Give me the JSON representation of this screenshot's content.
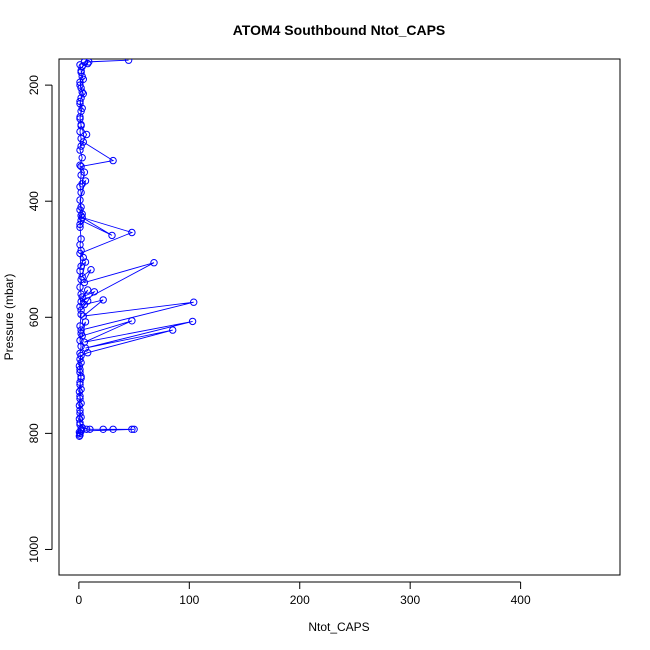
{
  "chart_data": {
    "type": "line",
    "title": "ATOM4 Southbound Ntot_CAPS",
    "xlabel": "Ntot_CAPS",
    "ylabel": "Pressure (mbar)",
    "xlim": [
      -18,
      490
    ],
    "ylim": [
      1044,
      155
    ],
    "y_inverted": true,
    "x_ticks": [
      0,
      100,
      200,
      300,
      400
    ],
    "y_ticks": [
      200,
      400,
      600,
      800,
      1000
    ],
    "grid": false,
    "legend": "none",
    "series_color": "#0000ff",
    "markers": "open-circle",
    "series": [
      {
        "points": [
          [
            1,
            803
          ],
          [
            0.5,
            798
          ],
          [
            2,
            793
          ],
          [
            1,
            785
          ],
          [
            0.5,
            775
          ],
          [
            1,
            765
          ],
          [
            0.5,
            752
          ],
          [
            1,
            740
          ],
          [
            0.5,
            728
          ],
          [
            1,
            716
          ],
          [
            2,
            705
          ],
          [
            1,
            695
          ],
          [
            0.5,
            684
          ],
          [
            1,
            672
          ],
          [
            2,
            666
          ],
          [
            8,
            661
          ],
          [
            85,
            622
          ],
          [
            6,
            653
          ],
          [
            103,
            607
          ],
          [
            5,
            643
          ],
          [
            48,
            606
          ],
          [
            3,
            632
          ],
          [
            6,
            608
          ],
          [
            2,
            622
          ],
          [
            104,
            574
          ],
          [
            4,
            598
          ],
          [
            22,
            570
          ],
          [
            5,
            578
          ],
          [
            8,
            572
          ],
          [
            2,
            588
          ],
          [
            14,
            556
          ],
          [
            3,
            565
          ],
          [
            8,
            553
          ],
          [
            2,
            573
          ],
          [
            68,
            506
          ],
          [
            5,
            540
          ],
          [
            11,
            518
          ],
          [
            3,
            530
          ],
          [
            6,
            505
          ],
          [
            2,
            512
          ],
          [
            4,
            497
          ],
          [
            1,
            490
          ],
          [
            48,
            454
          ],
          [
            3,
            428
          ],
          [
            30,
            459
          ],
          [
            2,
            433
          ],
          [
            1,
            440
          ],
          [
            3,
            422
          ],
          [
            2,
            410
          ],
          [
            1,
            398
          ],
          [
            6,
            365
          ],
          [
            3,
            370
          ],
          [
            5,
            350
          ],
          [
            2,
            340
          ],
          [
            31,
            330
          ],
          [
            4,
            298
          ],
          [
            2,
            305
          ],
          [
            7,
            285
          ],
          [
            2,
            270
          ],
          [
            1,
            255
          ],
          [
            3,
            240
          ],
          [
            1,
            228
          ],
          [
            4,
            215
          ],
          [
            2,
            205
          ],
          [
            1,
            195
          ],
          [
            3,
            185
          ],
          [
            2,
            175
          ],
          [
            1,
            165
          ],
          [
            5,
            160
          ],
          [
            45,
            157
          ],
          [
            9,
            160
          ],
          [
            3,
            168
          ],
          [
            8,
            163
          ],
          [
            2,
            178
          ],
          [
            4,
            190
          ],
          [
            1,
            200
          ],
          [
            3,
            212
          ],
          [
            2,
            222
          ],
          [
            1,
            232
          ],
          [
            2,
            245
          ],
          [
            1,
            258
          ],
          [
            2,
            268
          ],
          [
            1,
            280
          ],
          [
            2,
            292
          ],
          [
            1,
            312
          ],
          [
            3,
            325
          ],
          [
            1,
            338
          ],
          [
            2,
            355
          ],
          [
            1,
            375
          ],
          [
            2,
            385
          ],
          [
            1,
            415
          ],
          [
            2,
            425
          ],
          [
            1,
            445
          ],
          [
            2,
            465
          ],
          [
            1,
            475
          ],
          [
            2,
            485
          ],
          [
            1,
            520
          ],
          [
            2,
            535
          ],
          [
            1,
            548
          ],
          [
            2,
            560
          ],
          [
            1,
            582
          ],
          [
            2,
            595
          ],
          [
            1,
            615
          ],
          [
            2,
            628
          ],
          [
            1,
            640
          ],
          [
            2,
            650
          ],
          [
            1,
            662
          ],
          [
            2,
            678
          ],
          [
            1,
            690
          ],
          [
            2,
            702
          ],
          [
            1,
            712
          ],
          [
            2,
            724
          ],
          [
            1,
            736
          ],
          [
            2,
            748
          ],
          [
            1,
            760
          ],
          [
            2,
            772
          ],
          [
            1,
            782
          ],
          [
            3,
            790
          ],
          [
            10,
            793
          ],
          [
            7,
            793
          ],
          [
            22,
            793
          ],
          [
            31,
            793
          ],
          [
            48,
            793
          ],
          [
            50,
            793
          ],
          [
            2,
            796
          ],
          [
            1,
            800
          ],
          [
            0.5,
            805
          ]
        ]
      }
    ]
  }
}
